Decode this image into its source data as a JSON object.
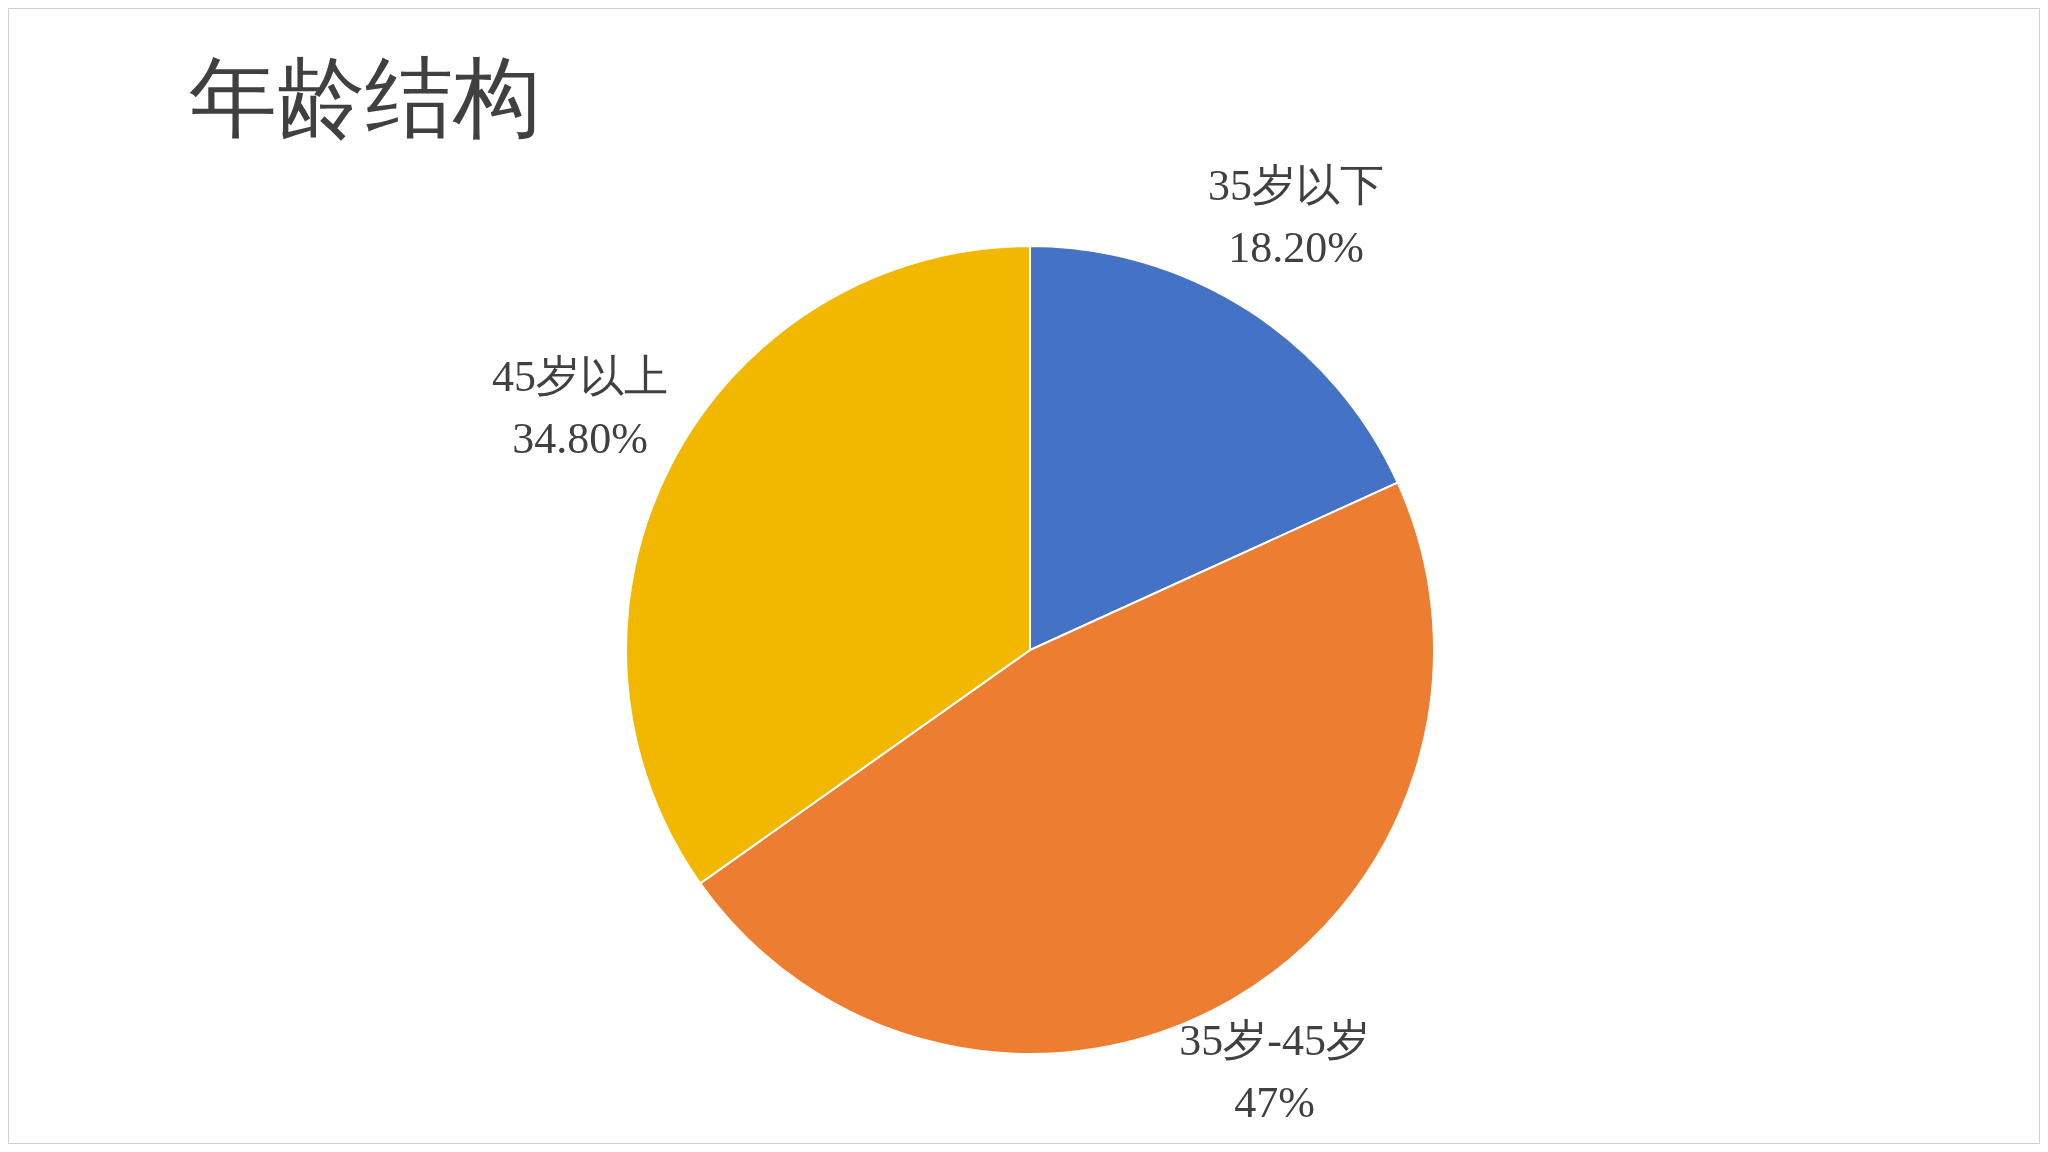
{
  "chart_data": {
    "type": "pie",
    "title": "年龄结构",
    "categories": [
      "35岁以下",
      "35岁-45岁",
      "45岁以上"
    ],
    "values": [
      18.2,
      47,
      34.8
    ],
    "value_labels": [
      "18.20%",
      "47%",
      "34.80%"
    ],
    "colors": [
      "#4472c4",
      "#ed7d31",
      "#f2b800"
    ],
    "legend": false
  }
}
